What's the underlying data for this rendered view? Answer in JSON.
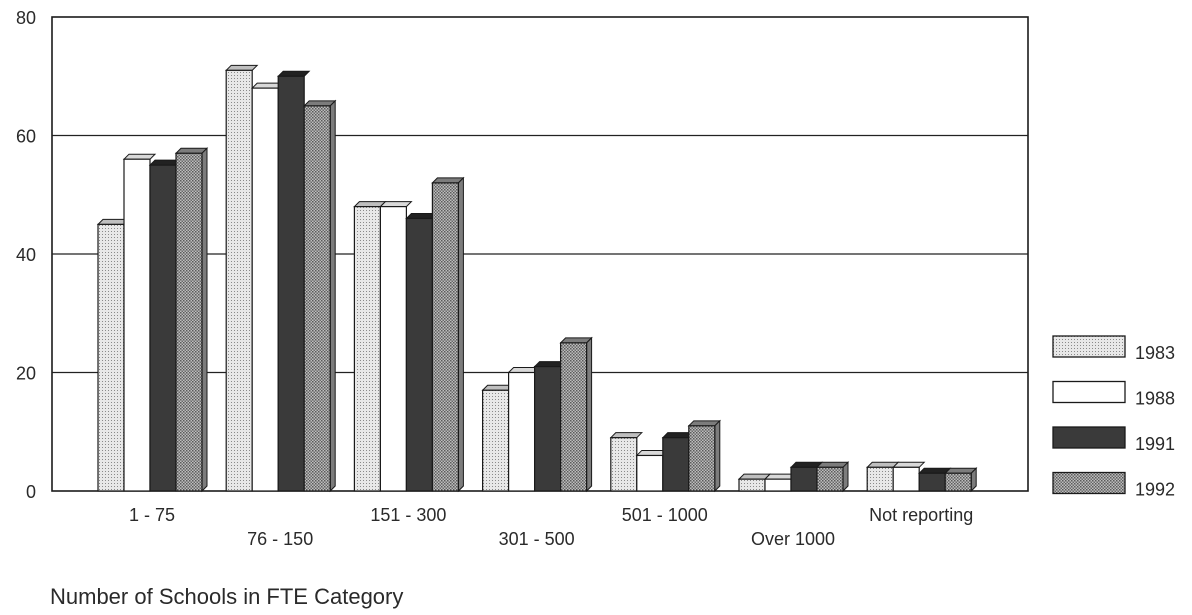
{
  "chart_data": {
    "type": "bar",
    "xlabel": "",
    "ylabel": "",
    "ylim": [
      0,
      80
    ],
    "yticks": [
      0,
      20,
      40,
      60,
      80
    ],
    "grid": true,
    "legend_position": "right",
    "categories": [
      "1 - 75",
      "76 - 150",
      "151 - 300",
      "301 - 500",
      "501 - 1000",
      "Over 1000",
      "Not reporting"
    ],
    "series": [
      {
        "name": "1983",
        "values": [
          45,
          71,
          48,
          17,
          9,
          2,
          4
        ],
        "pattern": "light-dotted"
      },
      {
        "name": "1988",
        "values": [
          56,
          68,
          48,
          20,
          6,
          2,
          4
        ],
        "pattern": "white"
      },
      {
        "name": "1991",
        "values": [
          55,
          70,
          46,
          21,
          9,
          4,
          3
        ],
        "pattern": "dark"
      },
      {
        "name": "1992",
        "values": [
          57,
          65,
          52,
          25,
          11,
          4,
          3
        ],
        "pattern": "medium-dotted"
      }
    ],
    "colors": {
      "dark": "#3a3a3a",
      "outline": "#1a1a1a",
      "grid": "#222222"
    }
  },
  "caption": "Number of Schools in FTE Category"
}
